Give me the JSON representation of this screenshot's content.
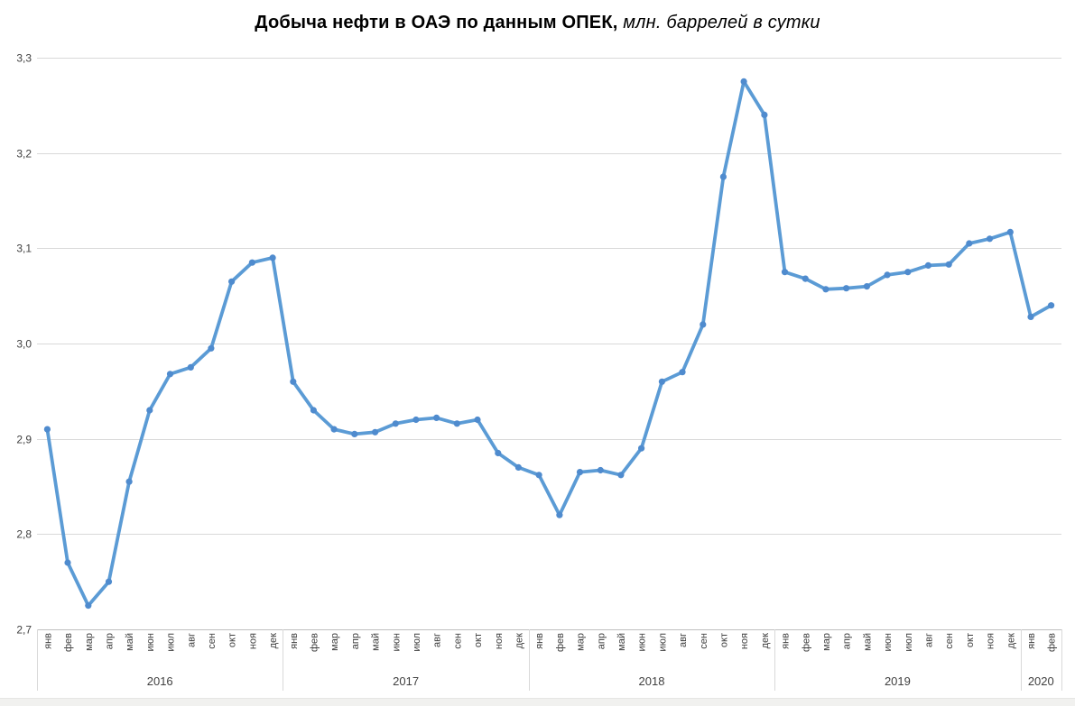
{
  "title": {
    "bold": "Добыча нефти в ОАЭ по данным ОПЕК,",
    "italic": " млн. баррелей в сутки"
  },
  "chart_data": {
    "type": "line",
    "title": "Добыча нефти в ОАЭ по данным ОПЕК, млн. баррелей в сутки",
    "xlabel": "",
    "ylabel": "",
    "ylim": [
      2.7,
      3.3
    ],
    "grid": true,
    "legend": false,
    "y_axis": {
      "min": 2.7,
      "max": 3.3,
      "step": 0.1,
      "tick_labels_top_to_bottom": [
        "3,3",
        "3,2",
        "3,1",
        "3,0",
        "2,9",
        "2,8",
        "2,7"
      ]
    },
    "x_axis": {
      "months": [
        "янв",
        "фев",
        "мар",
        "апр",
        "май",
        "июн",
        "июл",
        "авг",
        "сен",
        "окт",
        "ноя",
        "дек"
      ],
      "years": [
        {
          "label": "2016",
          "months": 12
        },
        {
          "label": "2017",
          "months": 12
        },
        {
          "label": "2018",
          "months": 12
        },
        {
          "label": "2019",
          "months": 12
        },
        {
          "label": "2020",
          "months": 2
        }
      ]
    },
    "series": [
      {
        "values": [
          2.91,
          2.77,
          2.725,
          2.75,
          2.855,
          2.93,
          2.968,
          2.975,
          2.995,
          3.065,
          3.085,
          3.09,
          2.96,
          2.93,
          2.91,
          2.905,
          2.907,
          2.916,
          2.92,
          2.922,
          2.916,
          2.92,
          2.885,
          2.87,
          2.862,
          2.82,
          2.865,
          2.867,
          2.862,
          2.89,
          2.96,
          2.97,
          3.02,
          3.175,
          3.275,
          3.24,
          3.075,
          3.068,
          3.057,
          3.058,
          3.06,
          3.072,
          3.075,
          3.082,
          3.083,
          3.105,
          3.11,
          3.117,
          3.028,
          3.04
        ]
      }
    ],
    "colors": {
      "line": "#5b9bd5",
      "marker": "#4f8bce",
      "gridline": "#d9d9d9",
      "axis_line": "#bfbfbf",
      "separator": "#d9d9d9",
      "axis_text": "#404040",
      "title_text": "#000000",
      "bottom_bar": "#f1f1ef"
    }
  }
}
